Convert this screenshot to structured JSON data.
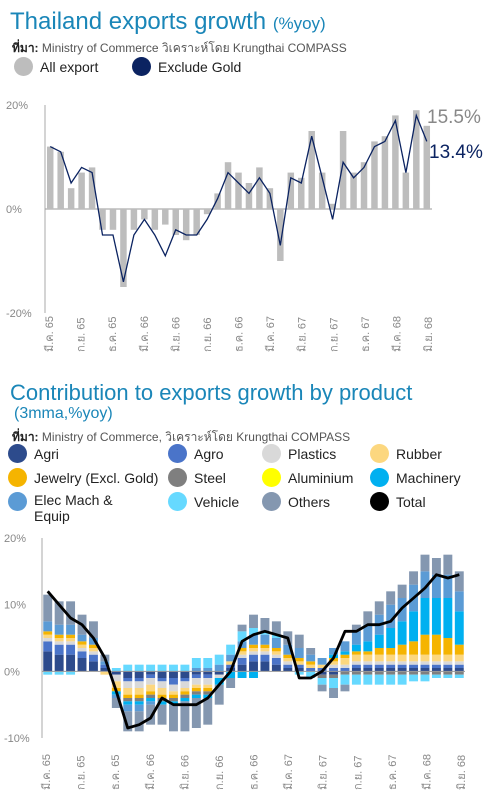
{
  "chart_data": [
    {
      "type": "bar",
      "title": "Thailand exports growth",
      "title_unit": "(%yoy)",
      "source_prefix": "ที่มา:",
      "source_text": "Ministry of Commerce วิเคราะห์โดย Krungthai COMPASS",
      "legend": [
        {
          "name": "All export",
          "color": "#bdbdbd"
        },
        {
          "name": "Exclude Gold",
          "color": "#0b2361"
        }
      ],
      "yticks": [
        "20%",
        "0%",
        "-20%"
      ],
      "ylim": [
        -20,
        20
      ],
      "xtick_labels": [
        "มี.ค. 65",
        "ก.ย. 65",
        "ธ.ค. 65",
        "มี.ค. 66",
        "มิ.ย. 66",
        "ก.ย. 66",
        "ธ.ค. 66",
        "มี.ค. 67",
        "มิ.ย. 67",
        "ก.ย. 67",
        "ธ.ค. 67",
        "มี.ค. 68",
        "มิ.ย. 68"
      ],
      "series": [
        {
          "name": "All export",
          "kind": "bar",
          "values": [
            12,
            11,
            4,
            7,
            8,
            -4,
            -4,
            -15,
            -4,
            -2,
            -4,
            -3,
            -5,
            -6,
            -5,
            -1,
            3,
            9,
            7,
            5,
            8,
            4,
            -10,
            7,
            6,
            15,
            7,
            1,
            15,
            7,
            9,
            13,
            14,
            18,
            7,
            19,
            16
          ]
        },
        {
          "name": "Exclude Gold",
          "kind": "line",
          "values": [
            12,
            11,
            5,
            8,
            7,
            -5,
            -5,
            -14,
            -5,
            -2,
            -5,
            -9,
            -4,
            -5,
            -5,
            -2,
            2,
            7,
            5,
            3,
            6,
            3,
            -7,
            6,
            5,
            14,
            6,
            -2,
            9,
            6,
            8,
            12,
            13,
            17,
            7,
            18,
            13
          ]
        }
      ],
      "end_labels": {
        "all_export": "15.5%",
        "exclude_gold": "13.4%"
      }
    },
    {
      "type": "bar",
      "title": "Contribution to exports growth by product",
      "title_unit": "(3mma,%yoy)",
      "source_prefix": "ที่มา:",
      "source_text": "Ministry of Commerce, วิเคราะห์โดย Krungthai COMPASS",
      "stacked": true,
      "yticks": [
        "20%",
        "10%",
        "0%",
        "-10%"
      ],
      "ylim": [
        -10,
        20
      ],
      "xtick_labels": [
        "มี.ค. 65",
        "ก.ย. 65",
        "ธ.ค. 65",
        "มี.ค. 66",
        "มิ.ย. 66",
        "ก.ย. 66",
        "ธ.ค. 66",
        "มี.ค. 67",
        "มิ.ย. 67",
        "ก.ย. 67",
        "ธ.ค. 67",
        "มี.ค. 68",
        "มิ.ย. 68"
      ],
      "legend": [
        {
          "name": "Agri",
          "color": "#2d4b8c"
        },
        {
          "name": "Agro",
          "color": "#4a74c9"
        },
        {
          "name": "Plastics",
          "color": "#d9d9d9"
        },
        {
          "name": "Rubber",
          "color": "#fcd77f"
        },
        {
          "name": "Jewelry (Excl. Gold)",
          "color": "#f5b400"
        },
        {
          "name": "Steel",
          "color": "#7f7f7f"
        },
        {
          "name": "Aluminium",
          "color": "#ffff00"
        },
        {
          "name": "Machinery",
          "color": "#00b0f0"
        },
        {
          "name": "Elec Mach & Equip",
          "color": "#5b9bd5"
        },
        {
          "name": "Vehicle",
          "color": "#66d9ff"
        },
        {
          "name": "Others",
          "color": "#8497b0"
        },
        {
          "name": "Total",
          "color": "#000000"
        }
      ],
      "series": [
        {
          "name": "Agri",
          "values": [
            3,
            2.5,
            2.5,
            2,
            1.5,
            0.5,
            -0.5,
            -1,
            -1,
            -0.5,
            -1,
            -1,
            -1,
            -0.5,
            -0.5,
            -0.5,
            0.5,
            1,
            1.5,
            1.5,
            1,
            0.5,
            0.5,
            0,
            -0.5,
            -0.5,
            0,
            0.5,
            0.5,
            0.5,
            0.5,
            0.5,
            0.5,
            0.5,
            0.5,
            0.5,
            0.5
          ]
        },
        {
          "name": "Agro",
          "values": [
            1.5,
            1.5,
            1.5,
            1,
            1,
            0.5,
            0,
            -0.5,
            -0.5,
            -0.5,
            -0.5,
            -1,
            -0.5,
            -0.5,
            -0.5,
            0,
            0.5,
            1,
            1,
            1,
            1,
            0.5,
            0.5,
            0.5,
            0.5,
            0.5,
            0.5,
            0.5,
            0.5,
            0.5,
            0.5,
            0.5,
            0.5,
            0.5,
            0.5,
            0.5,
            0.5
          ]
        },
        {
          "name": "Plastics",
          "values": [
            0.5,
            0.5,
            0.5,
            0.5,
            0.5,
            0,
            -1,
            -1,
            -1,
            -1,
            -1,
            -1,
            -1,
            -1,
            -1,
            -0.5,
            0,
            0.5,
            0.5,
            0.5,
            0.5,
            0.5,
            0,
            0,
            0,
            0.5,
            0.5,
            0.5,
            0.5,
            0.5,
            0.5,
            0.5,
            0.5,
            0.5,
            0.5,
            0.5,
            0.5
          ]
        },
        {
          "name": "Rubber",
          "values": [
            0.5,
            0.5,
            0.5,
            0.5,
            0.5,
            -0.5,
            -1,
            -1,
            -1,
            -1,
            -1,
            -0.5,
            -0.5,
            -0.5,
            -0.5,
            0,
            0.5,
            0.5,
            0.5,
            0.5,
            0.5,
            0.5,
            0.5,
            0.5,
            0.5,
            0.5,
            1,
            1,
            1,
            1,
            1,
            1,
            1,
            1,
            1,
            1,
            1
          ]
        },
        {
          "name": "Jewelry (Excl. Gold)",
          "values": [
            0.5,
            0.5,
            0.5,
            0.5,
            0.5,
            0,
            -0.5,
            -0.5,
            -0.5,
            -0.5,
            -0.5,
            -0.5,
            -0.5,
            -0.5,
            -0.5,
            0,
            0,
            0.5,
            0.5,
            0.5,
            0.5,
            0.5,
            0.5,
            0.5,
            0,
            0.5,
            0.5,
            0.5,
            0.5,
            1,
            1,
            1.5,
            2,
            3,
            3,
            2.5,
            1.5
          ]
        },
        {
          "name": "Steel",
          "values": [
            0,
            0,
            0,
            0,
            0,
            0,
            0,
            -0.5,
            -0.5,
            -0.5,
            -0.5,
            -0.5,
            -0.5,
            -0.5,
            -0.5,
            0,
            0,
            0,
            0,
            0,
            0,
            0,
            0,
            0,
            -0.5,
            -0.5,
            -0.5,
            -0.5,
            -0.5,
            -0.5,
            -0.5,
            -0.5,
            -0.5,
            -0.5,
            -0.5,
            -0.5,
            -0.5
          ]
        },
        {
          "name": "Aluminium",
          "values": [
            0,
            0,
            0,
            0,
            0,
            0,
            0,
            0,
            0,
            0,
            0,
            0,
            0,
            0,
            0,
            0,
            0,
            0,
            0,
            0,
            0,
            0,
            0,
            0,
            0,
            0,
            0,
            0,
            0,
            0,
            0,
            0,
            0,
            0,
            0,
            0,
            0
          ]
        },
        {
          "name": "Machinery",
          "values": [
            0,
            0,
            0,
            0,
            0,
            0,
            -0.5,
            -0.5,
            -0.5,
            -0.5,
            -0.5,
            -0.5,
            -0.5,
            -0.5,
            -0.5,
            -1,
            -1,
            -1,
            -1,
            0,
            0,
            0,
            0,
            0,
            0,
            0.5,
            0.5,
            1,
            1.5,
            2,
            3,
            3.5,
            4.5,
            5.5,
            5.5,
            6,
            5
          ]
        },
        {
          "name": "Elec Mach & Equip",
          "values": [
            1.5,
            1.5,
            1.5,
            1,
            1,
            0.5,
            -0.5,
            -1,
            -1,
            -0.5,
            0,
            0,
            0,
            0.5,
            0.5,
            1,
            1,
            1,
            1.5,
            1.5,
            1.5,
            1.5,
            1.5,
            1,
            1,
            1,
            1.5,
            2,
            2.5,
            3,
            3.5,
            3.5,
            4,
            4,
            3.5,
            3.5,
            3
          ]
        },
        {
          "name": "Vehicle",
          "values": [
            -0.5,
            -0.5,
            -0.5,
            0,
            0,
            0,
            0.5,
            1,
            1,
            1,
            1,
            1,
            1,
            1.5,
            1.5,
            1.5,
            1.5,
            1.5,
            1,
            0.5,
            0.5,
            0,
            -0.5,
            -1,
            -1,
            -1.5,
            -1.5,
            -1.5,
            -1.5,
            -1.5,
            -1.5,
            -1.5,
            -1,
            -1,
            -0.5,
            -0.5,
            -0.5
          ]
        },
        {
          "name": "Others",
          "values": [
            4,
            3.5,
            3.5,
            3,
            2.5,
            1,
            -1.5,
            -3,
            -3,
            -3,
            -3,
            -4,
            -4.5,
            -4.5,
            -4,
            -3,
            -1.5,
            1,
            2,
            2,
            2,
            2,
            2,
            1,
            -1,
            -1.5,
            -1,
            1,
            2,
            2,
            2,
            2,
            2,
            2.5,
            2.5,
            3,
            3
          ]
        },
        {
          "name": "Total",
          "kind": "line",
          "values": [
            12,
            10,
            8,
            7,
            5,
            2,
            -3,
            -8.5,
            -8,
            -7,
            -4,
            -5,
            -5,
            -5,
            -4,
            -2,
            0,
            4.5,
            5.5,
            6,
            5.5,
            5,
            -1,
            -1,
            0,
            2,
            6,
            6,
            7,
            7,
            7.5,
            9.5,
            11,
            12.5,
            14.5,
            14,
            14.5
          ]
        }
      ]
    }
  ]
}
